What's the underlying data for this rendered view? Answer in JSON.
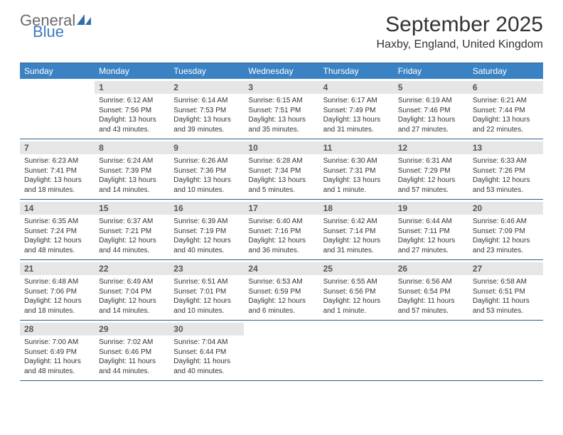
{
  "brand": {
    "word1": "General",
    "word2": "Blue",
    "word1_color": "#6b6b6b",
    "word2_color": "#3b7bbf",
    "icon_color": "#2f6fb0"
  },
  "title": "September 2025",
  "location": "Haxby, England, United Kingdom",
  "colors": {
    "header_bg": "#3b82c4",
    "header_text": "#ffffff",
    "rule": "#2f5f8f",
    "daynum_bg": "#e6e6e6",
    "daynum_text": "#555555",
    "body_text": "#333333",
    "background": "#ffffff"
  },
  "typography": {
    "title_fontsize": 30,
    "location_fontsize": 16,
    "dow_fontsize": 12,
    "daynum_fontsize": 12,
    "body_fontsize": 10
  },
  "days_of_week": [
    "Sunday",
    "Monday",
    "Tuesday",
    "Wednesday",
    "Thursday",
    "Friday",
    "Saturday"
  ],
  "weeks": [
    [
      {
        "n": "",
        "sunrise": "",
        "sunset": "",
        "daylight": ""
      },
      {
        "n": "1",
        "sunrise": "Sunrise: 6:12 AM",
        "sunset": "Sunset: 7:56 PM",
        "daylight": "Daylight: 13 hours and 43 minutes."
      },
      {
        "n": "2",
        "sunrise": "Sunrise: 6:14 AM",
        "sunset": "Sunset: 7:53 PM",
        "daylight": "Daylight: 13 hours and 39 minutes."
      },
      {
        "n": "3",
        "sunrise": "Sunrise: 6:15 AM",
        "sunset": "Sunset: 7:51 PM",
        "daylight": "Daylight: 13 hours and 35 minutes."
      },
      {
        "n": "4",
        "sunrise": "Sunrise: 6:17 AM",
        "sunset": "Sunset: 7:49 PM",
        "daylight": "Daylight: 13 hours and 31 minutes."
      },
      {
        "n": "5",
        "sunrise": "Sunrise: 6:19 AM",
        "sunset": "Sunset: 7:46 PM",
        "daylight": "Daylight: 13 hours and 27 minutes."
      },
      {
        "n": "6",
        "sunrise": "Sunrise: 6:21 AM",
        "sunset": "Sunset: 7:44 PM",
        "daylight": "Daylight: 13 hours and 22 minutes."
      }
    ],
    [
      {
        "n": "7",
        "sunrise": "Sunrise: 6:23 AM",
        "sunset": "Sunset: 7:41 PM",
        "daylight": "Daylight: 13 hours and 18 minutes."
      },
      {
        "n": "8",
        "sunrise": "Sunrise: 6:24 AM",
        "sunset": "Sunset: 7:39 PM",
        "daylight": "Daylight: 13 hours and 14 minutes."
      },
      {
        "n": "9",
        "sunrise": "Sunrise: 6:26 AM",
        "sunset": "Sunset: 7:36 PM",
        "daylight": "Daylight: 13 hours and 10 minutes."
      },
      {
        "n": "10",
        "sunrise": "Sunrise: 6:28 AM",
        "sunset": "Sunset: 7:34 PM",
        "daylight": "Daylight: 13 hours and 5 minutes."
      },
      {
        "n": "11",
        "sunrise": "Sunrise: 6:30 AM",
        "sunset": "Sunset: 7:31 PM",
        "daylight": "Daylight: 13 hours and 1 minute."
      },
      {
        "n": "12",
        "sunrise": "Sunrise: 6:31 AM",
        "sunset": "Sunset: 7:29 PM",
        "daylight": "Daylight: 12 hours and 57 minutes."
      },
      {
        "n": "13",
        "sunrise": "Sunrise: 6:33 AM",
        "sunset": "Sunset: 7:26 PM",
        "daylight": "Daylight: 12 hours and 53 minutes."
      }
    ],
    [
      {
        "n": "14",
        "sunrise": "Sunrise: 6:35 AM",
        "sunset": "Sunset: 7:24 PM",
        "daylight": "Daylight: 12 hours and 48 minutes."
      },
      {
        "n": "15",
        "sunrise": "Sunrise: 6:37 AM",
        "sunset": "Sunset: 7:21 PM",
        "daylight": "Daylight: 12 hours and 44 minutes."
      },
      {
        "n": "16",
        "sunrise": "Sunrise: 6:39 AM",
        "sunset": "Sunset: 7:19 PM",
        "daylight": "Daylight: 12 hours and 40 minutes."
      },
      {
        "n": "17",
        "sunrise": "Sunrise: 6:40 AM",
        "sunset": "Sunset: 7:16 PM",
        "daylight": "Daylight: 12 hours and 36 minutes."
      },
      {
        "n": "18",
        "sunrise": "Sunrise: 6:42 AM",
        "sunset": "Sunset: 7:14 PM",
        "daylight": "Daylight: 12 hours and 31 minutes."
      },
      {
        "n": "19",
        "sunrise": "Sunrise: 6:44 AM",
        "sunset": "Sunset: 7:11 PM",
        "daylight": "Daylight: 12 hours and 27 minutes."
      },
      {
        "n": "20",
        "sunrise": "Sunrise: 6:46 AM",
        "sunset": "Sunset: 7:09 PM",
        "daylight": "Daylight: 12 hours and 23 minutes."
      }
    ],
    [
      {
        "n": "21",
        "sunrise": "Sunrise: 6:48 AM",
        "sunset": "Sunset: 7:06 PM",
        "daylight": "Daylight: 12 hours and 18 minutes."
      },
      {
        "n": "22",
        "sunrise": "Sunrise: 6:49 AM",
        "sunset": "Sunset: 7:04 PM",
        "daylight": "Daylight: 12 hours and 14 minutes."
      },
      {
        "n": "23",
        "sunrise": "Sunrise: 6:51 AM",
        "sunset": "Sunset: 7:01 PM",
        "daylight": "Daylight: 12 hours and 10 minutes."
      },
      {
        "n": "24",
        "sunrise": "Sunrise: 6:53 AM",
        "sunset": "Sunset: 6:59 PM",
        "daylight": "Daylight: 12 hours and 6 minutes."
      },
      {
        "n": "25",
        "sunrise": "Sunrise: 6:55 AM",
        "sunset": "Sunset: 6:56 PM",
        "daylight": "Daylight: 12 hours and 1 minute."
      },
      {
        "n": "26",
        "sunrise": "Sunrise: 6:56 AM",
        "sunset": "Sunset: 6:54 PM",
        "daylight": "Daylight: 11 hours and 57 minutes."
      },
      {
        "n": "27",
        "sunrise": "Sunrise: 6:58 AM",
        "sunset": "Sunset: 6:51 PM",
        "daylight": "Daylight: 11 hours and 53 minutes."
      }
    ],
    [
      {
        "n": "28",
        "sunrise": "Sunrise: 7:00 AM",
        "sunset": "Sunset: 6:49 PM",
        "daylight": "Daylight: 11 hours and 48 minutes."
      },
      {
        "n": "29",
        "sunrise": "Sunrise: 7:02 AM",
        "sunset": "Sunset: 6:46 PM",
        "daylight": "Daylight: 11 hours and 44 minutes."
      },
      {
        "n": "30",
        "sunrise": "Sunrise: 7:04 AM",
        "sunset": "Sunset: 6:44 PM",
        "daylight": "Daylight: 11 hours and 40 minutes."
      },
      {
        "n": "",
        "sunrise": "",
        "sunset": "",
        "daylight": ""
      },
      {
        "n": "",
        "sunrise": "",
        "sunset": "",
        "daylight": ""
      },
      {
        "n": "",
        "sunrise": "",
        "sunset": "",
        "daylight": ""
      },
      {
        "n": "",
        "sunrise": "",
        "sunset": "",
        "daylight": ""
      }
    ]
  ]
}
